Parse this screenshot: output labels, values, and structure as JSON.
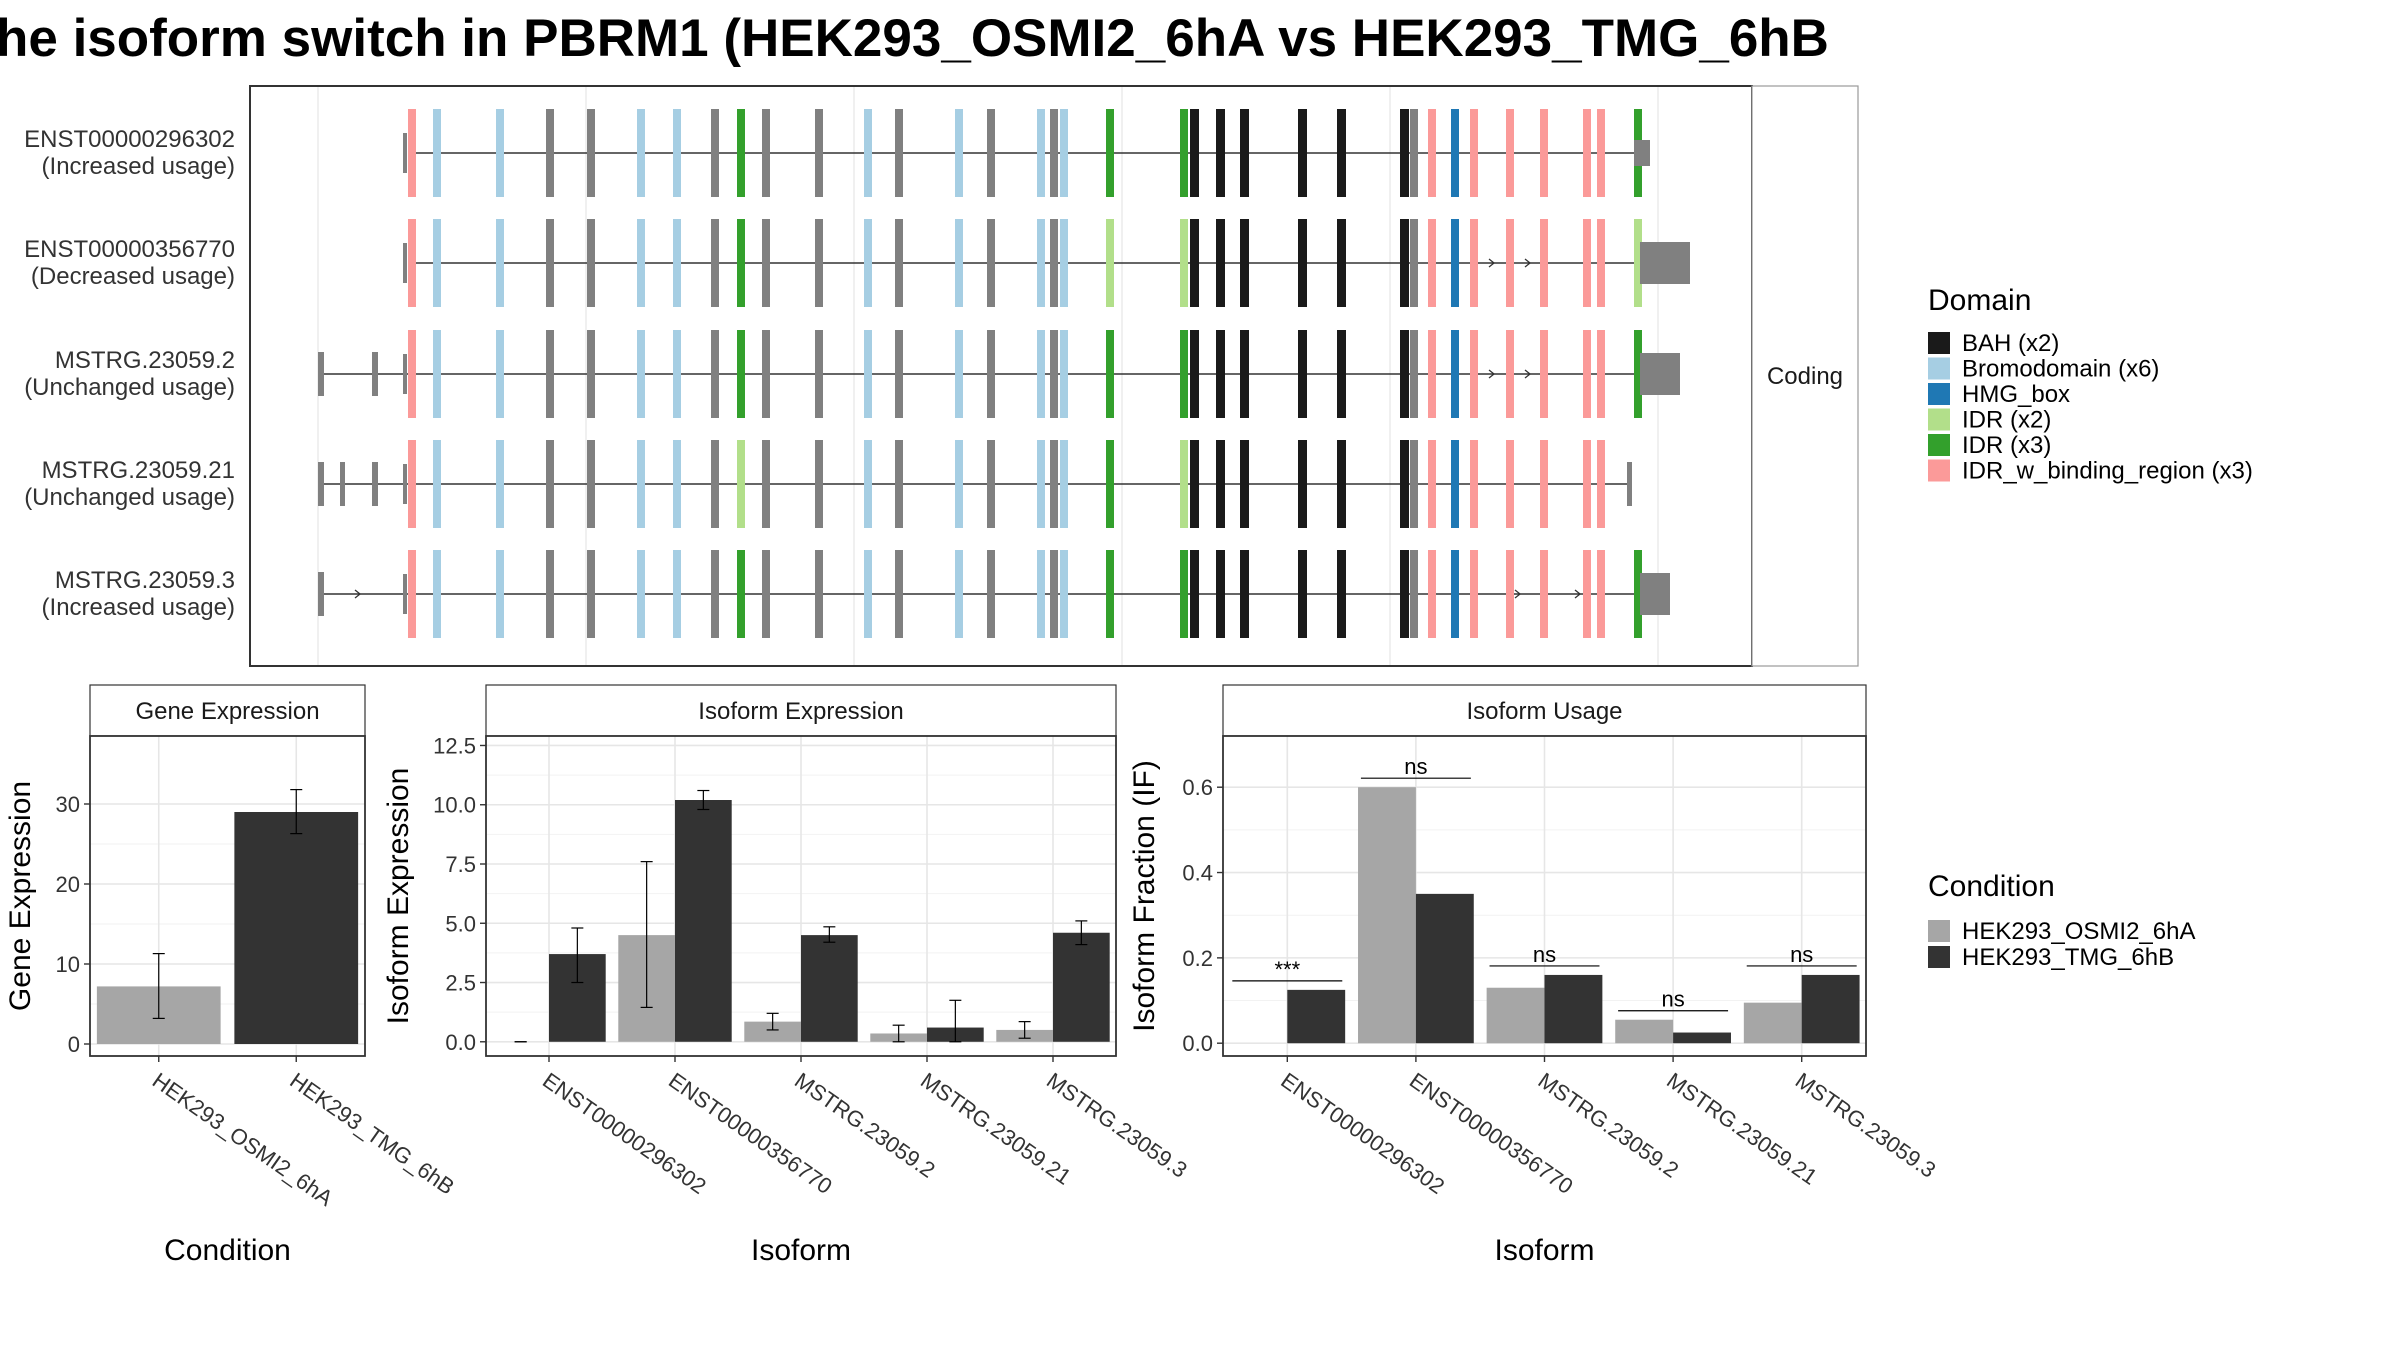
{
  "title": "he isoform switch in PBRM1 (HEK293_OSMI2_6hA vs HEK293_TMG_6hB",
  "structure": {
    "facet_label": "Coding",
    "isoforms": [
      {
        "id": "ENST00000296302",
        "usage": "(Increased usage)"
      },
      {
        "id": "ENST00000356770",
        "usage": "(Decreased usage)"
      },
      {
        "id": "MSTRG.23059.2",
        "usage": "(Unchanged usage)"
      },
      {
        "id": "MSTRG.23059.21",
        "usage": "(Unchanged usage)"
      },
      {
        "id": "MSTRG.23059.3",
        "usage": "(Increased usage)"
      }
    ]
  },
  "domain_legend": {
    "title": "Domain",
    "items": [
      {
        "label": "BAH (x2)",
        "color": "#1a1a1a"
      },
      {
        "label": "Bromodomain (x6)",
        "color": "#a6cee3"
      },
      {
        "label": "HMG_box",
        "color": "#1f78b4"
      },
      {
        "label": "IDR (x2)",
        "color": "#b2df8a"
      },
      {
        "label": "IDR (x3)",
        "color": "#33a02c"
      },
      {
        "label": "IDR_w_binding_region (x3)",
        "color": "#fb9a99"
      }
    ]
  },
  "condition_legend": {
    "title": "Condition",
    "items": [
      {
        "label": "HEK293_OSMI2_6hA",
        "color": "#a6a6a6"
      },
      {
        "label": "HEK293_TMG_6hB",
        "color": "#333333"
      }
    ]
  },
  "chart_data": [
    {
      "type": "bar",
      "title": "Gene Expression",
      "xlabel": "Condition",
      "ylabel": "Gene Expression",
      "categories": [
        "HEK293_OSMI2_6hA",
        "HEK293_TMG_6hB"
      ],
      "values": [
        7.2,
        29.0
      ],
      "error_low": [
        3.2,
        26.3
      ],
      "error_high": [
        11.3,
        31.8
      ],
      "ylim": [
        -1.5,
        38.5
      ],
      "yticks": [
        0,
        10,
        20,
        30
      ],
      "ytick_labels": [
        "0",
        "10",
        "20",
        "30"
      ],
      "colors": [
        "#a6a6a6",
        "#333333"
      ]
    },
    {
      "type": "bar",
      "title": "Isoform Expression",
      "xlabel": "Isoform",
      "ylabel": "Isoform Expression",
      "categories": [
        "ENST00000296302",
        "ENST00000356770",
        "MSTRG.23059.2",
        "MSTRG.23059.21",
        "MSTRG.23059.3"
      ],
      "series": [
        {
          "values": [
            0.0,
            4.5,
            0.85,
            0.35,
            0.5
          ],
          "error_low": [
            0.0,
            1.45,
            0.5,
            0.0,
            0.15
          ],
          "error_high": [
            0.0,
            7.6,
            1.2,
            0.7,
            0.85
          ]
        },
        {
          "values": [
            3.7,
            10.2,
            4.5,
            0.6,
            4.6
          ],
          "error_low": [
            2.5,
            9.8,
            4.2,
            0.0,
            4.1
          ],
          "error_high": [
            4.8,
            10.6,
            4.85,
            1.75,
            5.1
          ]
        }
      ],
      "ylim": [
        -0.6,
        12.9
      ],
      "yticks": [
        0,
        2.5,
        5,
        7.5,
        10,
        12.5
      ],
      "ytick_labels": [
        "0.0",
        "2.5",
        "5.0",
        "7.5",
        "10.0",
        "12.5"
      ]
    },
    {
      "type": "bar",
      "title": "Isoform Usage",
      "xlabel": "Isoform",
      "ylabel": "Isoform Fraction (IF)",
      "categories": [
        "ENST00000296302",
        "ENST00000356770",
        "MSTRG.23059.2",
        "MSTRG.23059.21",
        "MSTRG.23059.3"
      ],
      "series": [
        {
          "values": [
            0.0,
            0.6,
            0.13,
            0.055,
            0.095
          ]
        },
        {
          "values": [
            0.125,
            0.35,
            0.16,
            0.025,
            0.16
          ]
        }
      ],
      "significance": [
        "***",
        "ns",
        "ns",
        "ns",
        "ns"
      ],
      "ylim": [
        -0.03,
        0.72
      ],
      "yticks": [
        0,
        0.2,
        0.4,
        0.6
      ],
      "ytick_labels": [
        "0.0",
        "0.2",
        "0.4",
        "0.6"
      ]
    }
  ]
}
